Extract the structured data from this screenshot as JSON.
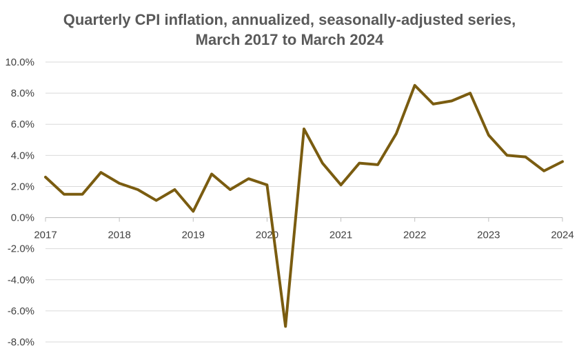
{
  "title": {
    "line1": "Quarterly CPI inflation, annualized, seasonally-adjusted series,",
    "line2": "March 2017 to March 2024"
  },
  "colors": {
    "line": "#7a5c10",
    "grid": "#d9d9d9",
    "axis": "#bfbfbf",
    "text": "#404040",
    "title": "#595959"
  },
  "chart_data": {
    "type": "line",
    "title": "Quarterly CPI inflation, annualized, seasonally-adjusted series, March 2017 to March 2024",
    "xlabel": "",
    "ylabel": "",
    "ylim": [
      -8,
      10
    ],
    "xlim": [
      2017,
      2024
    ],
    "grid": true,
    "legend": "none",
    "y_ticks": [
      "10.0%",
      "8.0%",
      "6.0%",
      "4.0%",
      "2.0%",
      "0.0%",
      "-2.0%",
      "-4.0%",
      "-6.0%",
      "-8.0%"
    ],
    "y_tick_values": [
      10,
      8,
      6,
      4,
      2,
      0,
      -2,
      -4,
      -6,
      -8
    ],
    "x_ticks": [
      "2017",
      "2018",
      "2019",
      "2020",
      "2021",
      "2022",
      "2023",
      "2024"
    ],
    "x_tick_values": [
      2017,
      2018,
      2019,
      2020,
      2021,
      2022,
      2023,
      2024
    ],
    "series": [
      {
        "x": [
          "2017-03",
          "2017-06",
          "2017-09",
          "2017-12",
          "2018-03",
          "2018-06",
          "2018-09",
          "2018-12",
          "2019-03",
          "2019-06",
          "2019-09",
          "2019-12",
          "2020-03",
          "2020-06",
          "2020-09",
          "2020-12",
          "2021-03",
          "2021-06",
          "2021-09",
          "2021-12",
          "2022-03",
          "2022-06",
          "2022-09",
          "2022-12",
          "2023-03",
          "2023-06",
          "2023-09",
          "2023-12",
          "2024-03"
        ],
        "values": [
          2.6,
          1.5,
          1.5,
          2.9,
          2.2,
          1.8,
          1.1,
          1.8,
          0.4,
          2.8,
          1.8,
          2.5,
          2.1,
          -7.0,
          5.7,
          3.5,
          2.1,
          3.5,
          3.4,
          5.4,
          8.5,
          7.3,
          7.5,
          8.0,
          5.3,
          4.0,
          3.9,
          3.0,
          3.6
        ]
      }
    ]
  }
}
